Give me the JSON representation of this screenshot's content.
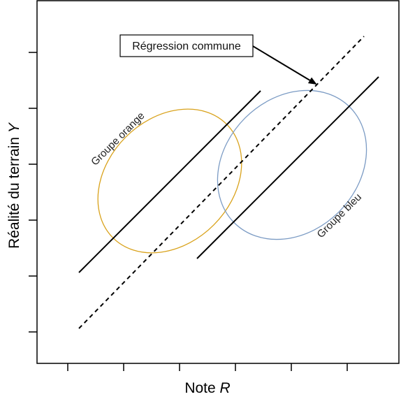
{
  "axes": {
    "x_label_prefix": "Note ",
    "x_label_var": "R",
    "y_label_prefix": "Réalité du terrain ",
    "y_label_var": "Y"
  },
  "groups": {
    "orange": {
      "label": "Groupe orange",
      "color": "#d9a21b"
    },
    "blue": {
      "label": "Groupe bleu",
      "color": "#7b9bc4"
    }
  },
  "callout": {
    "label": "Régression commune"
  },
  "styles": {
    "line_color": "#000000",
    "frame_color": "#000000"
  }
}
